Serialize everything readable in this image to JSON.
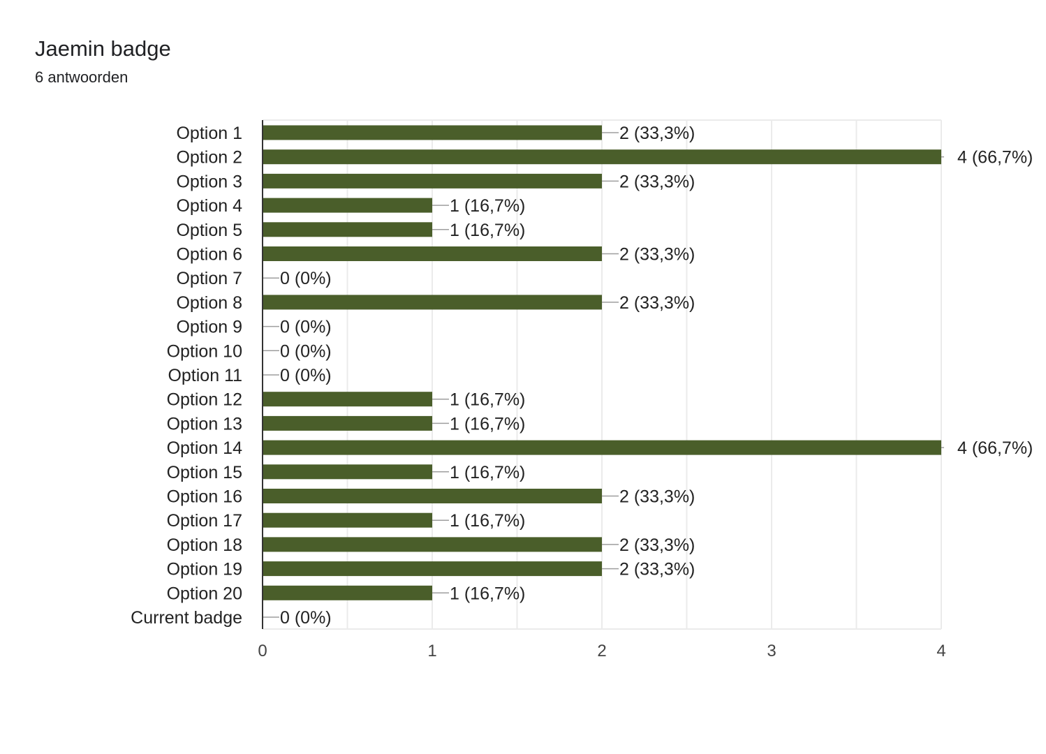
{
  "header": {
    "title": "Jaemin badge",
    "responses": "6 antwoorden"
  },
  "colors": {
    "bar": "#4a5e2a",
    "grid": "#ebebeb",
    "axis": "#333333",
    "text": "#222222",
    "tick_text": "#444444"
  },
  "chart_data": {
    "type": "bar",
    "orientation": "horizontal",
    "title": "Jaemin badge",
    "subtitle": "6 antwoorden",
    "categories": [
      "Option 1",
      "Option 2",
      "Option 3",
      "Option 4",
      "Option 5",
      "Option 6",
      "Option 7",
      "Option 8",
      "Option 9",
      "Option 10",
      "Option 11",
      "Option 12",
      "Option 13",
      "Option 14",
      "Option 15",
      "Option 16",
      "Option 17",
      "Option 18",
      "Option 19",
      "Option 20",
      "Current badge"
    ],
    "values": [
      2,
      4,
      2,
      1,
      1,
      2,
      0,
      2,
      0,
      0,
      0,
      1,
      1,
      4,
      1,
      2,
      1,
      2,
      2,
      1,
      0
    ],
    "data_labels": [
      "2 (33,3%)",
      "4 (66,7%)",
      "2 (33,3%)",
      "1 (16,7%)",
      "1 (16,7%)",
      "2 (33,3%)",
      "0 (0%)",
      "2 (33,3%)",
      "0 (0%)",
      "0 (0%)",
      "0 (0%)",
      "1 (16,7%)",
      "1 (16,7%)",
      "4 (66,7%)",
      "1 (16,7%)",
      "2 (33,3%)",
      "1 (16,7%)",
      "2 (33,3%)",
      "2 (33,3%)",
      "1 (16,7%)",
      "0 (0%)"
    ],
    "xticks": [
      "0",
      "1",
      "2",
      "3",
      "4"
    ],
    "xlim": [
      0,
      4
    ],
    "minor_gridlines": true,
    "xlabel": "",
    "ylabel": ""
  }
}
